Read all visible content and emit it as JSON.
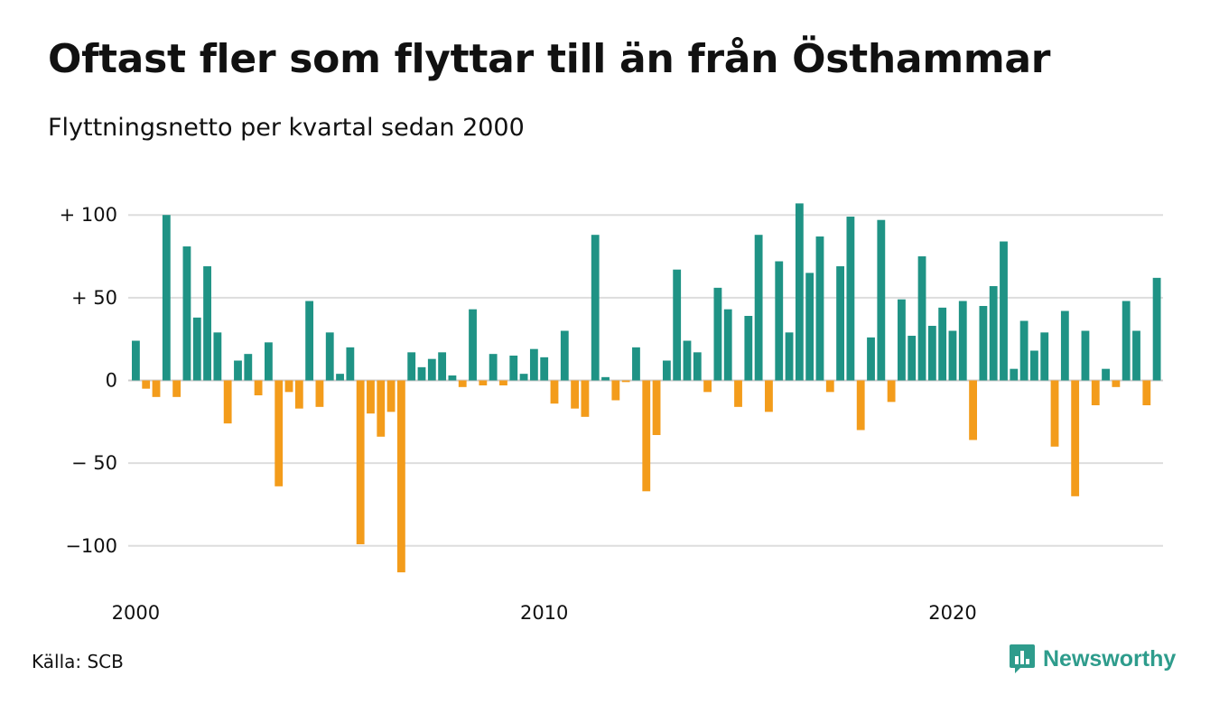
{
  "title": "Oftast fler som flyttar till än från Östhammar",
  "subtitle": "Flyttningsnetto per kvartal sedan 2000",
  "source": "Källa: SCB",
  "brand": "Newsworthy",
  "chart_data": {
    "type": "bar",
    "y_ticks": [
      {
        "value": 100,
        "label": "+ 100"
      },
      {
        "value": 50,
        "label": "+  50"
      },
      {
        "value": 0,
        "label": "0"
      },
      {
        "value": -50,
        "label": "− 50"
      },
      {
        "value": -100,
        "label": "−100"
      }
    ],
    "x_ticks": [
      {
        "year": 2000,
        "label": "2000"
      },
      {
        "year": 2010,
        "label": "2010"
      },
      {
        "year": 2020,
        "label": "2020"
      }
    ],
    "ylim": [
      -118,
      108
    ],
    "grid": true,
    "colors": {
      "positive": "#1f9385",
      "negative": "#f39c1b",
      "grid": "#dddddd"
    },
    "categories": [
      "2000Q1",
      "2000Q2",
      "2000Q3",
      "2000Q4",
      "2001Q1",
      "2001Q2",
      "2001Q3",
      "2001Q4",
      "2002Q1",
      "2002Q2",
      "2002Q3",
      "2002Q4",
      "2003Q1",
      "2003Q2",
      "2003Q3",
      "2003Q4",
      "2004Q1",
      "2004Q2",
      "2004Q3",
      "2004Q4",
      "2005Q1",
      "2005Q2",
      "2005Q3",
      "2005Q4",
      "2006Q1",
      "2006Q2",
      "2006Q3",
      "2006Q4",
      "2007Q1",
      "2007Q2",
      "2007Q3",
      "2007Q4",
      "2008Q1",
      "2008Q2",
      "2008Q3",
      "2008Q4",
      "2009Q1",
      "2009Q2",
      "2009Q3",
      "2009Q4",
      "2010Q1",
      "2010Q2",
      "2010Q3",
      "2010Q4",
      "2011Q1",
      "2011Q2",
      "2011Q3",
      "2011Q4",
      "2012Q1",
      "2012Q2",
      "2012Q3",
      "2012Q4",
      "2013Q1",
      "2013Q2",
      "2013Q3",
      "2013Q4",
      "2014Q1",
      "2014Q2",
      "2014Q3",
      "2014Q4",
      "2015Q1",
      "2015Q2",
      "2015Q3",
      "2015Q4",
      "2016Q1",
      "2016Q2",
      "2016Q3",
      "2016Q4",
      "2017Q1",
      "2017Q2",
      "2017Q3",
      "2017Q4",
      "2018Q1",
      "2018Q2",
      "2018Q3",
      "2018Q4",
      "2019Q1",
      "2019Q2",
      "2019Q3",
      "2019Q4",
      "2020Q1",
      "2020Q2",
      "2020Q3",
      "2020Q4",
      "2021Q1",
      "2021Q2",
      "2021Q3",
      "2021Q4",
      "2022Q1",
      "2022Q2",
      "2022Q3",
      "2022Q4",
      "2023Q1",
      "2023Q2",
      "2023Q3",
      "2023Q4",
      "2024Q1",
      "2024Q2",
      "2024Q3",
      "2024Q4",
      "2025Q1"
    ],
    "values": [
      24,
      -5,
      -10,
      100,
      -10,
      81,
      38,
      69,
      29,
      -26,
      12,
      16,
      -9,
      23,
      -64,
      -7,
      -17,
      48,
      -16,
      29,
      4,
      20,
      -99,
      -20,
      -34,
      -19,
      -116,
      17,
      8,
      13,
      17,
      3,
      -4,
      43,
      -3,
      16,
      -3,
      15,
      4,
      19,
      14,
      -14,
      30,
      -17,
      -22,
      88,
      2,
      -12,
      -1,
      20,
      -67,
      -33,
      12,
      67,
      24,
      17,
      -7,
      56,
      43,
      -16,
      39,
      88,
      -19,
      72,
      29,
      107,
      65,
      87,
      -7,
      69,
      99,
      -30,
      26,
      97,
      -13,
      49,
      27,
      75,
      33,
      44,
      30,
      48,
      -36,
      45,
      57,
      84,
      7,
      36,
      18,
      29,
      -40,
      42,
      -70,
      30,
      -15,
      7,
      -4,
      48,
      30,
      -15,
      62
    ]
  }
}
